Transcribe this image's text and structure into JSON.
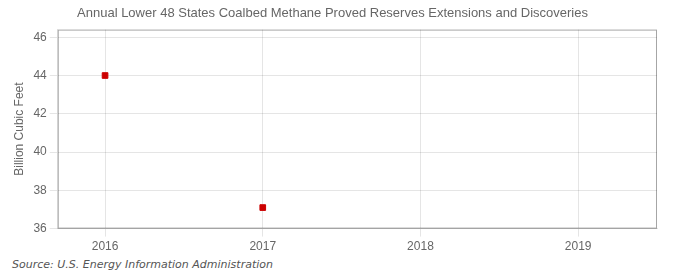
{
  "chart_data": {
    "type": "scatter",
    "title": "Annual Lower 48 States Coalbed Methane Proved Reserves Extensions and Discoveries",
    "ylabel": "Billion Cubic Feet",
    "annotations": [
      "Source: U.S. Energy Information Administration"
    ],
    "x": [
      2016,
      2017
    ],
    "values": [
      44.0,
      37.1
    ],
    "color": "#cc0000",
    "marker": "square",
    "xlim": [
      2015.7,
      2019.5
    ],
    "ylim": [
      36,
      46.4
    ],
    "xticks": [
      2016,
      2017,
      2018,
      2019
    ],
    "yticks": [
      36,
      38,
      40,
      42,
      44,
      46
    ],
    "grid": true
  }
}
